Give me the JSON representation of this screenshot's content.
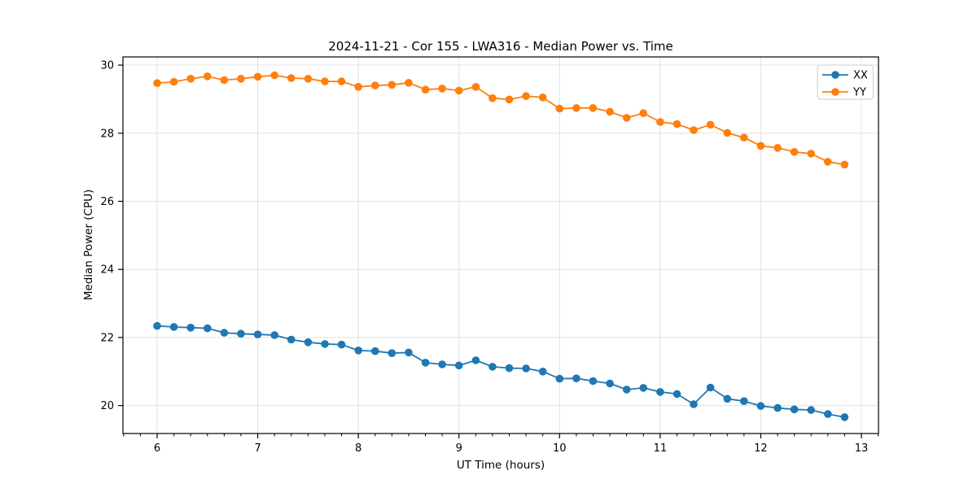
{
  "figure": {
    "background_color": "#ffffff",
    "spine_color": "#000000",
    "grid_color": "#e0e0e0"
  },
  "chart_data": {
    "type": "line",
    "title": "2024-11-21 - Cor 155 - LWA316 - Median Power vs. Time",
    "xlabel": "UT Time (hours)",
    "ylabel": "Median Power (CPU)",
    "grid": true,
    "legend_position": "upper right",
    "xlim": [
      5.66,
      13.17
    ],
    "ylim": [
      19.18,
      30.24
    ],
    "xticks": [
      6,
      7,
      8,
      9,
      10,
      11,
      12,
      13
    ],
    "yticks": [
      20,
      22,
      24,
      26,
      28,
      30
    ],
    "x_minor_tick_step": 0.1667,
    "x": [
      6.0,
      6.167,
      6.333,
      6.5,
      6.667,
      6.833,
      7.0,
      7.167,
      7.333,
      7.5,
      7.667,
      7.833,
      8.0,
      8.167,
      8.333,
      8.5,
      8.667,
      8.833,
      9.0,
      9.167,
      9.333,
      9.5,
      9.667,
      9.833,
      10.0,
      10.167,
      10.333,
      10.5,
      10.667,
      10.833,
      11.0,
      11.167,
      11.333,
      11.5,
      11.667,
      11.833,
      12.0,
      12.167,
      12.333,
      12.5,
      12.667,
      12.833
    ],
    "series": [
      {
        "name": "XX",
        "color": "#1f77b4",
        "values": [
          22.34,
          22.31,
          22.29,
          22.27,
          22.14,
          22.11,
          22.09,
          22.07,
          21.94,
          21.86,
          21.81,
          21.79,
          21.62,
          21.6,
          21.54,
          21.56,
          21.26,
          21.21,
          21.18,
          21.33,
          21.14,
          21.1,
          21.09,
          21.0,
          20.79,
          20.8,
          20.72,
          20.65,
          20.47,
          20.52,
          20.4,
          20.34,
          20.04,
          20.53,
          20.2,
          20.13,
          19.99,
          19.93,
          19.89,
          19.87,
          19.75,
          19.66
        ]
      },
      {
        "name": "YY",
        "color": "#ff7f0e",
        "values": [
          29.47,
          29.51,
          29.6,
          29.67,
          29.56,
          29.6,
          29.66,
          29.7,
          29.62,
          29.6,
          29.52,
          29.52,
          29.36,
          29.4,
          29.42,
          29.48,
          29.28,
          29.31,
          29.25,
          29.36,
          29.03,
          28.99,
          29.09,
          29.05,
          28.72,
          28.74,
          28.74,
          28.63,
          28.45,
          28.59,
          28.33,
          28.27,
          28.09,
          28.25,
          28.01,
          27.87,
          27.63,
          27.57,
          27.45,
          27.4,
          27.16,
          27.08
        ]
      }
    ]
  }
}
